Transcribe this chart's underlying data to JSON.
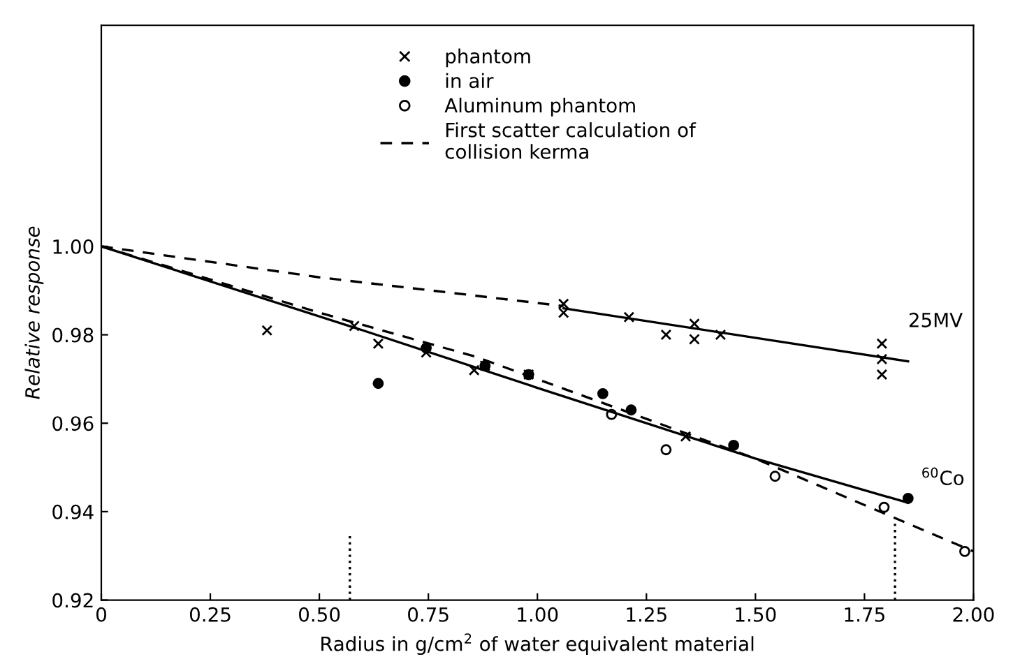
{
  "chart_data": {
    "type": "scatter",
    "xlabel": "Radius in g/cm$^{2}$ of water equivalent material",
    "ylabel": "Relative response",
    "xlim": [
      0,
      2.0
    ],
    "ylim": [
      0.92,
      1.05
    ],
    "xticks": [
      0,
      0.25,
      {
        "value": 0.5,
        "label": "0.50"
      },
      0.75,
      {
        "value": 1.0,
        "label": "1.00"
      },
      1.25,
      {
        "value": 1.5,
        "label": "1.50"
      },
      1.75,
      {
        "value": 2.0,
        "label": "2.00"
      }
    ],
    "yticks": [
      0.92,
      0.94,
      0.96,
      0.98,
      {
        "value": 1.0,
        "label": "1.00"
      }
    ],
    "grid": false,
    "legend": "top",
    "series": [
      {
        "name": "phantom",
        "marker": "cross",
        "color": "#000000",
        "x": [
          0.38,
          0.58,
          0.635,
          0.855,
          0.745,
          0.88,
          0.98,
          1.34,
          1.06,
          1.06,
          1.21,
          1.295,
          1.36,
          1.36,
          1.42,
          1.79,
          1.79,
          1.79
        ],
        "values": [
          0.981,
          0.982,
          0.978,
          0.972,
          0.976,
          0.973,
          0.971,
          0.957,
          0.987,
          0.985,
          0.984,
          0.98,
          0.9825,
          0.979,
          0.98,
          0.978,
          0.9745,
          0.971
        ]
      },
      {
        "name": "in air",
        "marker": "circle",
        "color": "#000000",
        "x": [
          0.635,
          0.745,
          0.88,
          0.98,
          1.15,
          1.215,
          1.45,
          1.85
        ],
        "values": [
          0.969,
          0.977,
          0.973,
          0.971,
          0.9667,
          0.963,
          0.955,
          0.943
        ]
      },
      {
        "name": "Aluminum phantom",
        "marker": "open circle",
        "color": "#000000",
        "x": [
          1.17,
          1.295,
          1.545,
          1.795,
          1.98
        ],
        "values": [
          0.962,
          0.954,
          0.948,
          0.941,
          0.931
        ]
      },
      {
        "name": "First scatter calculation of\ncollision kerma",
        "type": "line",
        "line_style": "dashed",
        "color": "#000000",
        "x": [
          0,
          0.5,
          1.06
        ],
        "values": [
          1.0,
          0.993,
          0.9865
        ]
      },
      {
        "type": "line",
        "line_style": "dashed",
        "color": "#000000",
        "x": [
          0,
          0.5,
          0.86,
          1.5,
          2.0
        ],
        "values": [
          1.0,
          0.985,
          0.975,
          0.952,
          0.931
        ]
      },
      {
        "type": "line",
        "line_style": "solid",
        "color": "#000000",
        "x": [
          1.06,
          1.85
        ],
        "values": [
          0.986,
          0.974
        ]
      },
      {
        "type": "line",
        "line_style": "solid",
        "color": "#000000",
        "x": [
          0,
          0.6,
          1.0,
          1.5,
          1.85
        ],
        "values": [
          1.0,
          0.981,
          0.968,
          0.952,
          0.942
        ]
      },
      {
        "type": "line",
        "line_style": "dotted",
        "color": "#000000",
        "x": [
          0.57,
          0.57
        ],
        "values": [
          0.92,
          0.935
        ]
      },
      {
        "type": "line",
        "line_style": "dotted",
        "color": "#000000",
        "x": [
          1.82,
          1.82
        ],
        "values": [
          0.92,
          0.938
        ]
      }
    ],
    "annotations": [
      "25MV",
      "$^{60}$Co"
    ]
  }
}
